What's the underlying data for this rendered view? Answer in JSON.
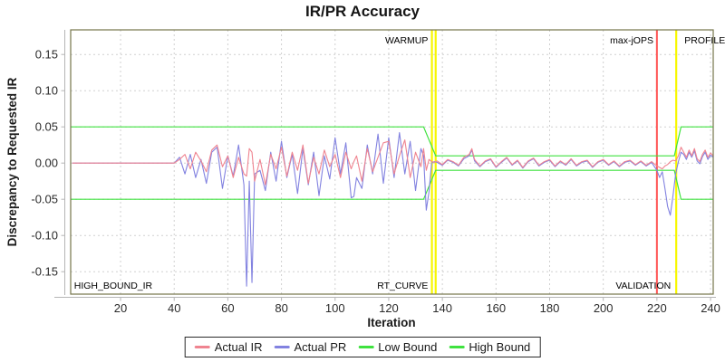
{
  "title": "IR/PR Accuracy",
  "legend": {
    "items": [
      {
        "label": "Actual IR",
        "color": "#ef8490"
      },
      {
        "label": "Actual PR",
        "color": "#8282e0"
      },
      {
        "label": "Low Bound",
        "color": "#3fe23f"
      },
      {
        "label": "High Bound",
        "color": "#3fe23f"
      }
    ]
  },
  "chart_data": {
    "type": "line",
    "title": "IR/PR Accuracy",
    "xlabel": "Iteration",
    "ylabel": "Discrepancy to Requested IR",
    "x_ticks": [
      20,
      40,
      60,
      80,
      100,
      120,
      140,
      160,
      180,
      200,
      220,
      240
    ],
    "y_ticks": [
      0.15,
      0.1,
      0.05,
      0.0,
      -0.05,
      -0.1,
      -0.15
    ],
    "x_range": [
      1.4,
      241
    ],
    "y_range": [
      -0.181,
      0.184
    ],
    "grid": true,
    "legend_position": "bottom",
    "colors": {
      "actual_ir": "#ef8490",
      "actual_pr": "#8282e0",
      "bound": "#3fe23f",
      "phase_marker_yellow": "#f7f700",
      "phase_marker_red": "#ff5555",
      "gridline": "#d0d0d0",
      "plot_border": "#74744a",
      "axis_line": "#b5b5b5",
      "tick_text": "#2b2b2b"
    },
    "x": [
      2,
      4,
      6,
      8,
      10,
      12,
      14,
      16,
      18,
      20,
      22,
      24,
      26,
      28,
      30,
      32,
      34,
      36,
      38,
      40,
      42,
      44,
      46,
      48,
      50,
      52,
      54,
      56,
      58,
      60,
      62,
      64,
      66,
      67,
      68,
      69,
      70,
      72,
      74,
      76,
      78,
      80,
      82,
      84,
      86,
      88,
      90,
      92,
      94,
      96,
      98,
      100,
      102,
      104,
      106,
      107,
      108,
      110,
      112,
      114,
      116,
      118,
      120,
      122,
      124,
      126,
      128,
      130,
      132,
      133,
      134,
      135,
      136,
      137,
      138,
      140,
      142,
      144,
      146,
      148,
      150,
      151,
      152,
      154,
      156,
      158,
      160,
      162,
      164,
      166,
      168,
      170,
      172,
      174,
      176,
      178,
      180,
      182,
      184,
      186,
      188,
      190,
      192,
      194,
      196,
      198,
      200,
      202,
      204,
      206,
      208,
      210,
      212,
      214,
      216,
      218,
      220,
      221,
      222,
      223,
      224,
      225,
      226,
      227,
      228,
      229,
      230,
      231,
      232,
      233,
      234,
      235,
      236,
      237,
      238,
      239,
      240,
      241
    ],
    "series": [
      {
        "name": "Actual PR",
        "color": "#8282e0",
        "y": [
          0,
          0,
          0,
          0,
          0,
          0,
          0,
          0,
          0,
          0,
          0,
          0,
          0,
          0,
          0,
          0,
          0,
          0,
          0,
          0,
          0.008,
          -0.015,
          0.012,
          -0.02,
          0.005,
          -0.028,
          0.015,
          0.022,
          -0.035,
          0.01,
          -0.018,
          0.025,
          -0.03,
          -0.17,
          -0.025,
          -0.165,
          -0.015,
          -0.01,
          -0.038,
          0.015,
          -0.025,
          0.03,
          -0.02,
          0.012,
          -0.042,
          0.02,
          -0.03,
          0.015,
          -0.045,
          0.01,
          -0.022,
          0.035,
          -0.015,
          0.028,
          -0.048,
          -0.046,
          -0.02,
          -0.035,
          0.025,
          -0.015,
          0.04,
          -0.028,
          0.035,
          -0.02,
          0.042,
          -0.015,
          0.03,
          -0.038,
          0.02,
          0.01,
          -0.065,
          -0.04,
          0.0,
          0.002,
          0.001,
          -0.003,
          0.004,
          0.001,
          -0.004,
          0.006,
          0.01,
          0.018,
          0.003,
          -0.005,
          0.002,
          0.005,
          -0.006,
          0.001,
          0.007,
          -0.003,
          0.003,
          -0.007,
          0.002,
          0.006,
          -0.004,
          0.001,
          0.004,
          -0.005,
          0.002,
          -0.003,
          0.005,
          -0.004,
          0.001,
          0.003,
          -0.006,
          0.001,
          0.004,
          -0.003,
          0.002,
          -0.005,
          0.001,
          0.003,
          -0.003,
          0.002,
          -0.004,
          0.001,
          -0.01,
          -0.02,
          -0.012,
          -0.035,
          -0.06,
          -0.072,
          -0.045,
          -0.015,
          0.002,
          0.015,
          0.012,
          0.005,
          0.015,
          0.008,
          0.017,
          0.003,
          -0.001,
          0.009,
          0.015,
          0.005,
          0.011,
          0.008
        ]
      },
      {
        "name": "Actual IR",
        "color": "#ef8490",
        "y": [
          0,
          0,
          0,
          0,
          0,
          0,
          0,
          0,
          0,
          0,
          0,
          0,
          0,
          0,
          0,
          0,
          0,
          0,
          0,
          0,
          0.005,
          0.012,
          -0.008,
          0.015,
          0.003,
          -0.012,
          0.018,
          0.025,
          -0.005,
          0.01,
          -0.02,
          0.008,
          -0.015,
          -0.018,
          0.02,
          0.015,
          -0.025,
          0.005,
          -0.03,
          0.012,
          -0.008,
          0.022,
          -0.018,
          0.015,
          -0.01,
          0.025,
          -0.028,
          0.008,
          -0.015,
          0.018,
          -0.005,
          0.012,
          -0.02,
          0.015,
          -0.008,
          0.002,
          0.01,
          -0.025,
          0.02,
          -0.012,
          0.008,
          0.028,
          0.03,
          -0.015,
          0.01,
          0.032,
          -0.02,
          0.015,
          -0.005,
          0.02,
          -0.01,
          0.005,
          0.002,
          0.001,
          0.003,
          -0.002,
          0.005,
          0.002,
          -0.003,
          0.008,
          0.012,
          0.02,
          0.005,
          -0.004,
          0.003,
          0.006,
          -0.005,
          0.002,
          0.008,
          -0.002,
          0.004,
          -0.006,
          0.003,
          0.007,
          -0.003,
          0.002,
          0.005,
          -0.004,
          0.003,
          -0.002,
          0.006,
          -0.003,
          0.002,
          0.004,
          -0.005,
          0.002,
          0.005,
          -0.002,
          0.003,
          -0.004,
          0.002,
          0.004,
          -0.002,
          0.003,
          -0.003,
          0.002,
          -0.004,
          -0.006,
          -0.008,
          -0.004,
          -0.002,
          0.002,
          0.004,
          0.003,
          0.01,
          0.022,
          0.015,
          0.008,
          0.018,
          0.01,
          0.02,
          0.006,
          0.002,
          0.012,
          0.018,
          0.008,
          0.014,
          0.01
        ]
      }
    ],
    "bounds": [
      {
        "name": "Low Bound",
        "color": "#3fe23f",
        "points": [
          [
            1.4,
            -0.05
          ],
          [
            133,
            -0.05
          ],
          [
            137.5,
            -0.01
          ],
          [
            226.5,
            -0.01
          ],
          [
            229,
            -0.05
          ],
          [
            241,
            -0.05
          ]
        ]
      },
      {
        "name": "High Bound",
        "color": "#3fe23f",
        "points": [
          [
            1.4,
            0.05
          ],
          [
            133,
            0.05
          ],
          [
            137.5,
            0.01
          ],
          [
            226.5,
            0.01
          ],
          [
            229,
            0.05
          ],
          [
            241,
            0.05
          ]
        ]
      }
    ],
    "markers": [
      {
        "x": 136.1,
        "color": "#f7f700",
        "width": 2.2
      },
      {
        "x": 137.5,
        "color": "#f7f700",
        "width": 2.2
      },
      {
        "x": 220,
        "color": "#ff5555",
        "width": 2
      },
      {
        "x": 227.2,
        "color": "#f7f700",
        "width": 2.2
      }
    ],
    "annotations": [
      {
        "text": "HIGH_BOUND_IR",
        "x": 2,
        "align": "start",
        "v": "bottom"
      },
      {
        "text": "WARMUP",
        "x": 135.7,
        "align": "end",
        "v": "top"
      },
      {
        "text": "RT_CURVE",
        "x": 135.7,
        "align": "end",
        "v": "bottom"
      },
      {
        "text": "max-jOPS",
        "x": 219.7,
        "align": "end",
        "v": "top"
      },
      {
        "text": "VALIDATION",
        "x": 226.2,
        "align": "end",
        "v": "bottom"
      },
      {
        "text": "PROFILE",
        "x": 229.6,
        "align": "start",
        "v": "top"
      }
    ]
  }
}
